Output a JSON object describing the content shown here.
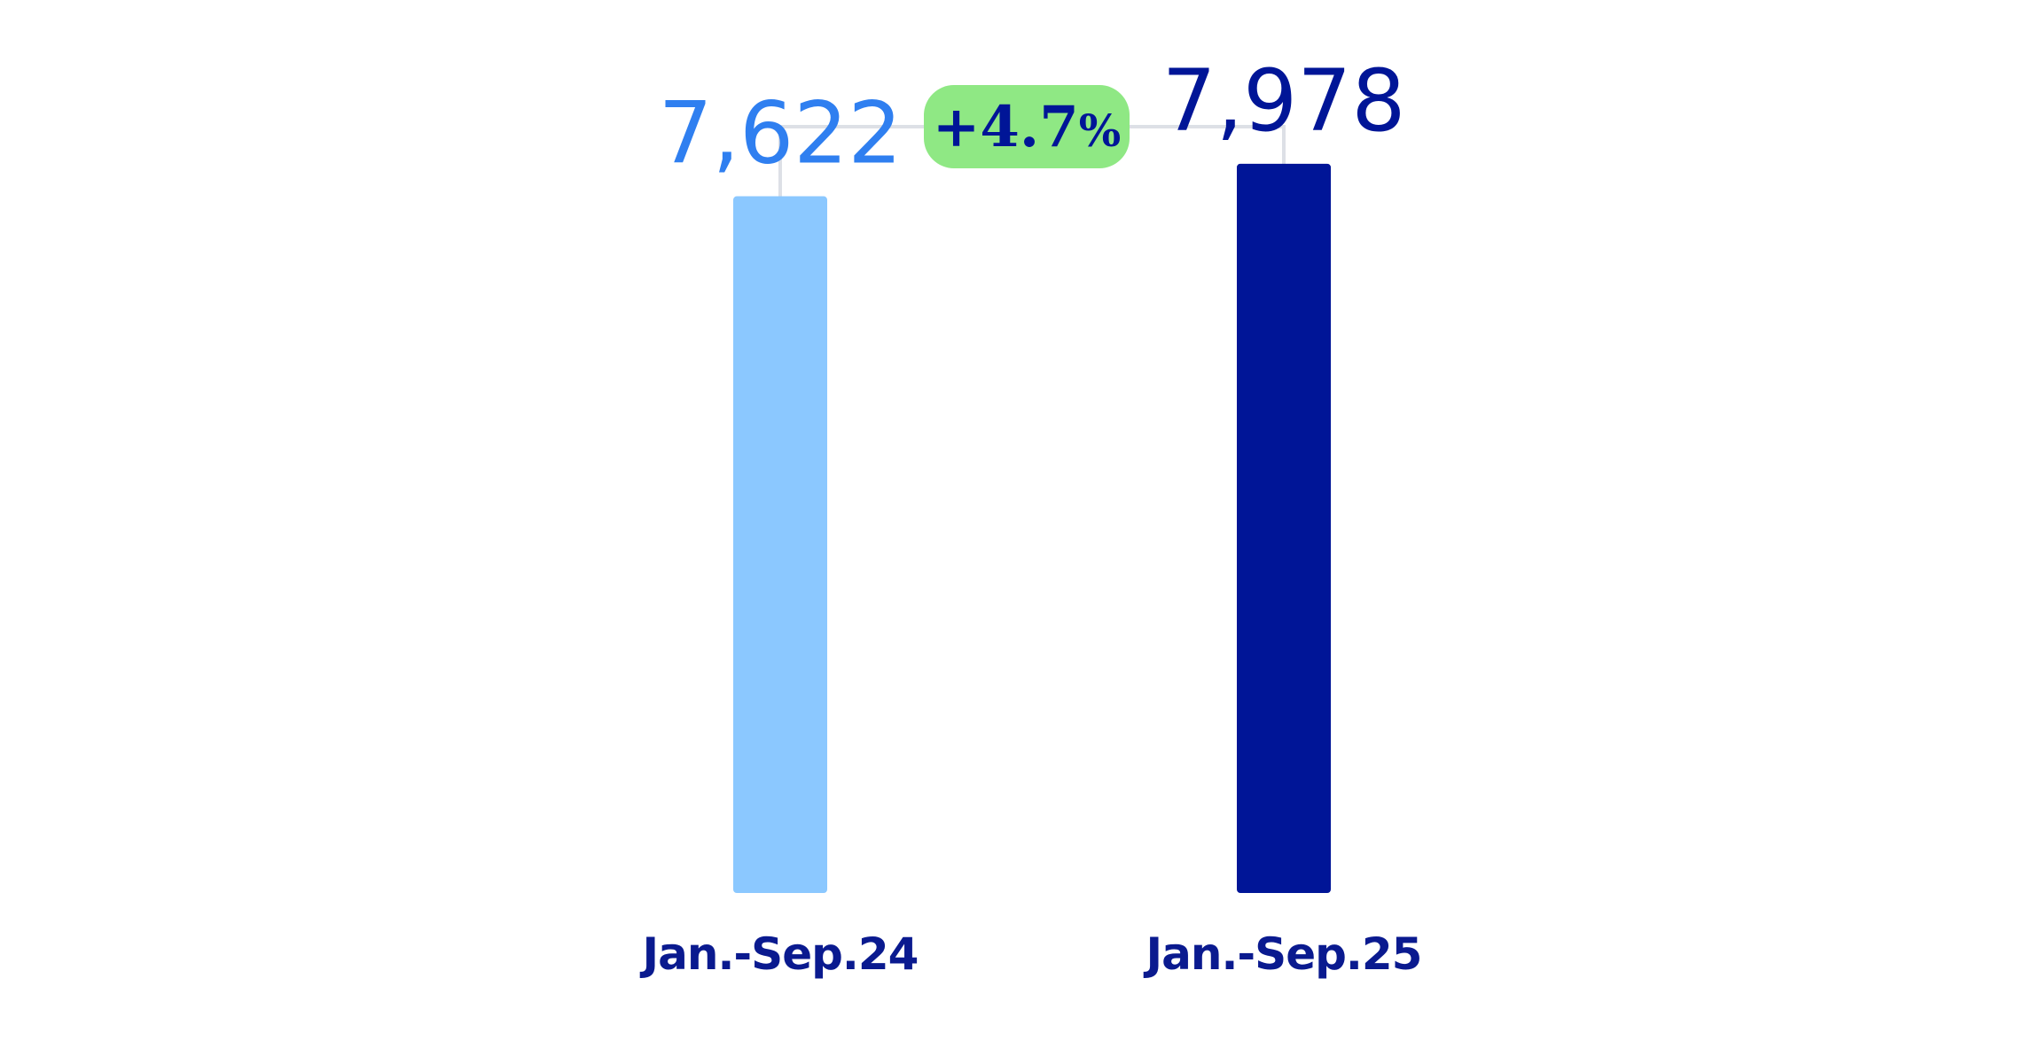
{
  "chart_data": {
    "type": "bar",
    "categories": [
      "Jan.-Sep.24",
      "Jan.-Sep.25"
    ],
    "values": [
      7622,
      7978
    ],
    "value_labels": [
      "7,622",
      "7,978"
    ],
    "ylim": [
      0,
      8800
    ],
    "grid": false,
    "annotation": {
      "sign": "+",
      "number": "4.7",
      "unit": "%"
    }
  },
  "colors": {
    "bar_prior": "#8bc8ff",
    "bar_current": "#001597",
    "label_prior": "#2f7ff0",
    "label_current": "#001597",
    "category_text": "#0a1a8f",
    "badge_fill": "#8fe884",
    "badge_text": "#001597",
    "bracket": "#dde0e6"
  }
}
